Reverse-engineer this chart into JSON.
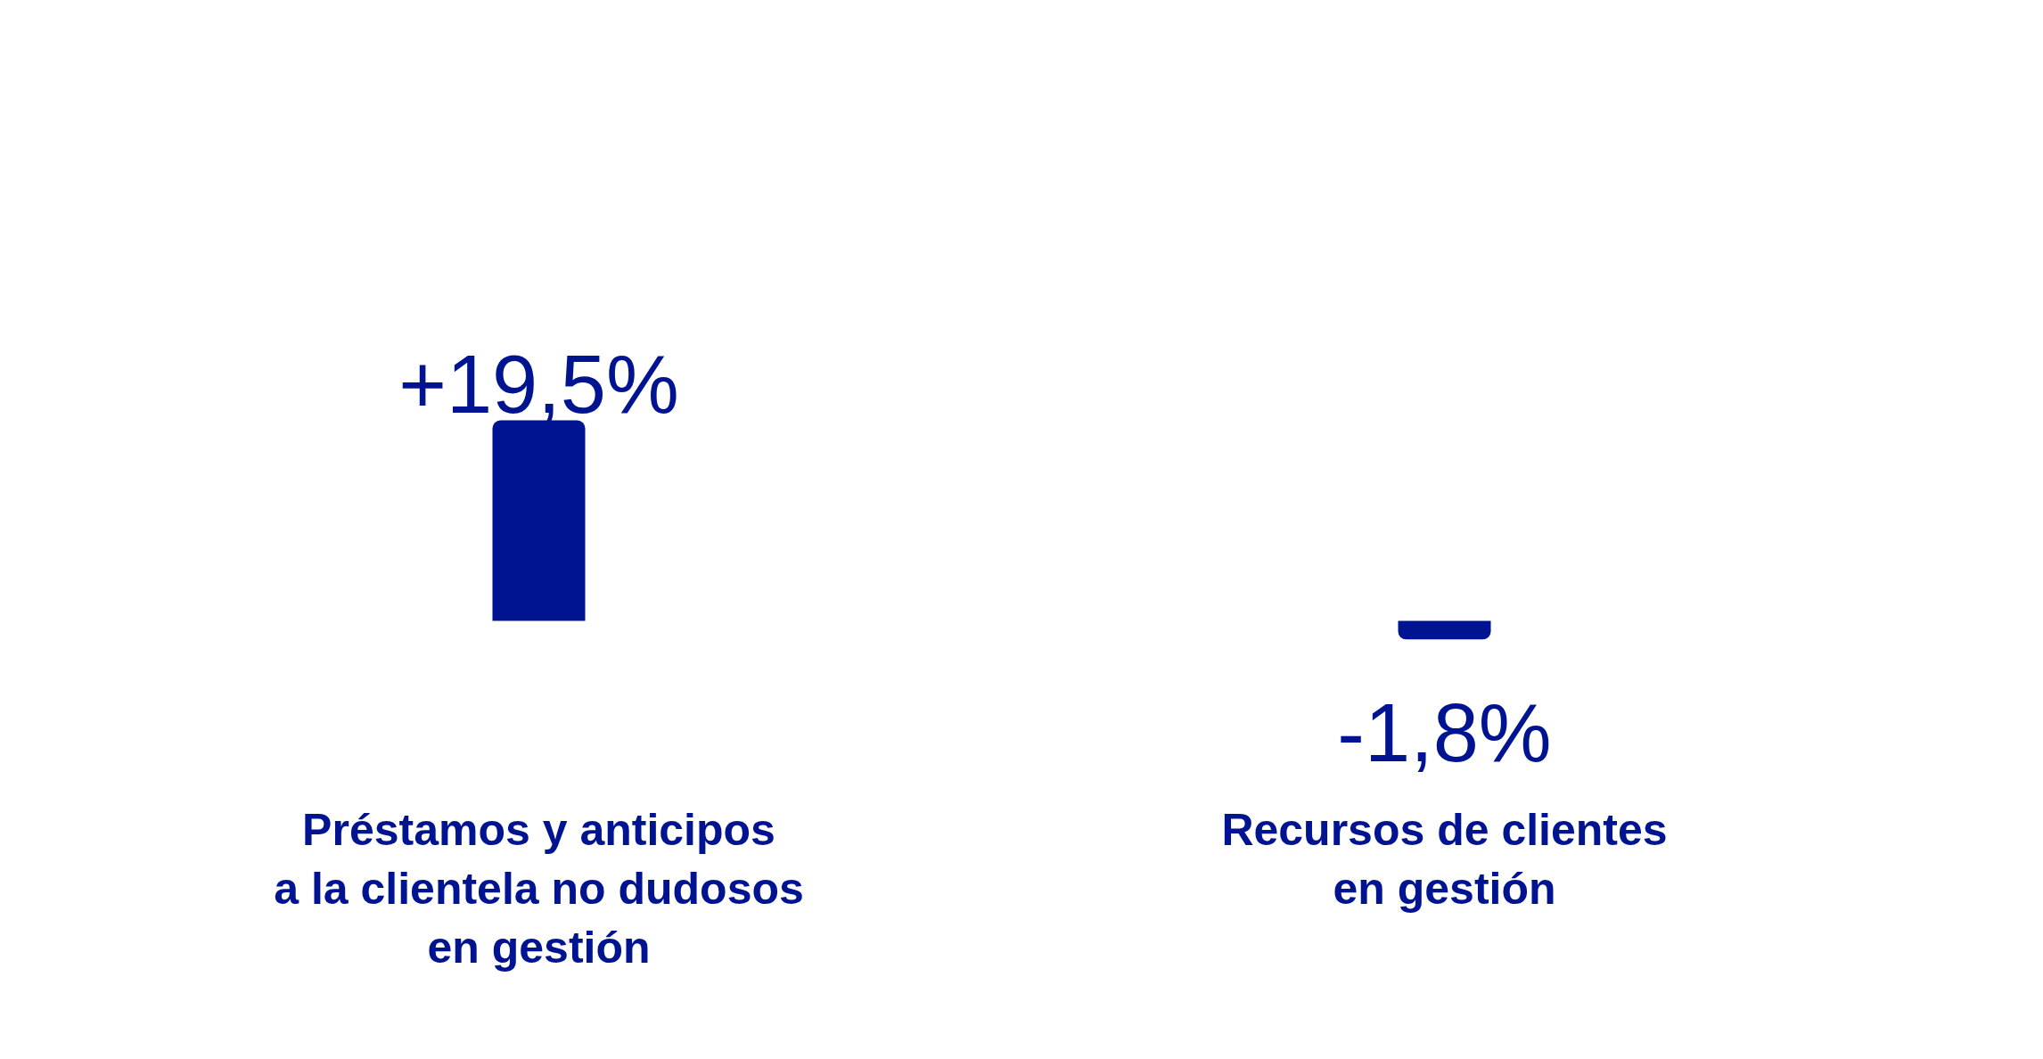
{
  "chart_data": {
    "type": "bar",
    "categories": [
      "Préstamos y anticipos\na la clientela no dudosos\nen gestión",
      "Recursos de clientes\nen gestión"
    ],
    "values": [
      19.5,
      -1.8
    ],
    "color": "#001391",
    "value_labels": [
      "+19,5%",
      "-1,8%"
    ],
    "tick_labels": "x"
  }
}
